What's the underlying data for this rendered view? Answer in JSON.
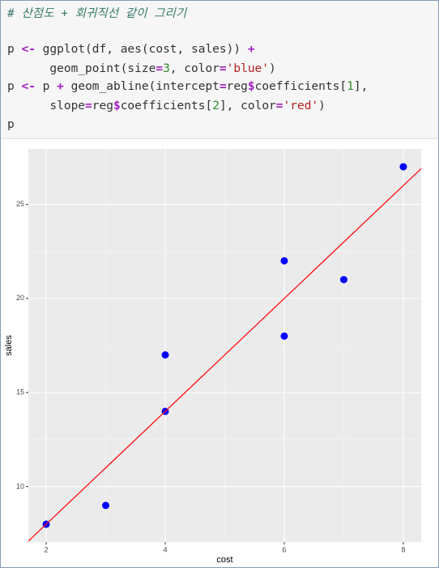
{
  "code": {
    "lines": [
      "# 산점도 + 회귀직선 같이 그리기",
      "",
      "p <- ggplot(df, aes(cost, sales)) +",
      "      geom_point(size=3, color='blue')",
      "p <- p + geom_abline(intercept=reg$coefficients[1],",
      "      slope=reg$coefficients[2], color='red')",
      "p"
    ]
  },
  "chart_data": {
    "type": "scatter",
    "x_label": "cost",
    "y_label": "sales",
    "x": [
      2,
      3,
      4,
      4,
      6,
      6,
      7,
      8
    ],
    "values": [
      8,
      9,
      14,
      17,
      18,
      22,
      21,
      27
    ],
    "color": "blue",
    "abline": {
      "intercept": 2,
      "slope": 3,
      "color": "red"
    },
    "xlim": [
      1.7,
      8.3
    ],
    "ylim": [
      7.05,
      27.95
    ],
    "xticks": [
      2,
      4,
      6,
      8
    ],
    "yticks": [
      10,
      15,
      20,
      25
    ],
    "grid": true
  }
}
